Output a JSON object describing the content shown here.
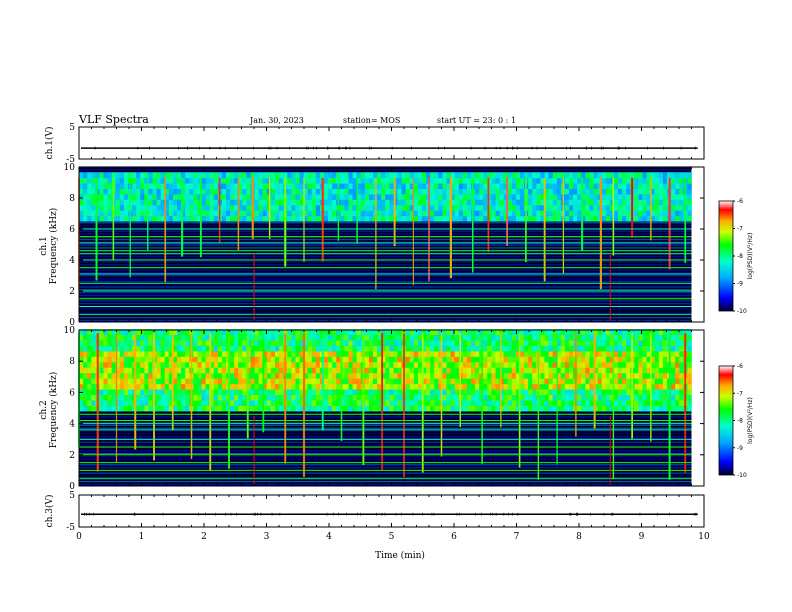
{
  "header": {
    "title": "VLF Spectra",
    "date": "Jan. 30, 2023",
    "station": "station= MOS",
    "start": "start  UT =   23: 0  : 1"
  },
  "chart_data": [
    {
      "type": "line",
      "name": "ch1-waveform",
      "ylabel": "ch.1(V)",
      "ylim": [
        -5,
        5
      ],
      "y_ticks": [
        "5",
        "-5"
      ],
      "xlim": [
        0,
        10
      ],
      "baseline_value": -1.6
    },
    {
      "type": "heatmap",
      "name": "ch1-spectrogram",
      "ylabel": "ch.1\nFrequency (kHz)",
      "ylabel_top": "ch.1",
      "ylabel_bottom": "Frequency (kHz)",
      "ylim": [
        0,
        10
      ],
      "y_ticks": [
        "0",
        "2",
        "4",
        "6",
        "8",
        "10"
      ],
      "xlim": [
        0,
        10
      ],
      "data_end_min": 9.8,
      "colorbar": {
        "label": "log(PSD)(V²/Hz)",
        "range": [
          -10,
          -6
        ],
        "ticks": [
          "-6",
          "-7",
          "-8",
          "-9",
          "-10"
        ]
      },
      "intense_band_kHz": [
        6.5,
        9.3
      ],
      "burst_times_min": [
        0.0,
        0.28,
        0.55,
        0.82,
        1.1,
        1.38,
        1.65,
        1.95,
        2.25,
        2.55,
        2.78,
        3.05,
        3.3,
        3.6,
        3.9,
        4.15,
        4.45,
        4.75,
        5.05,
        5.35,
        5.6,
        5.95,
        6.3,
        6.55,
        6.85,
        7.15,
        7.45,
        7.75,
        8.05,
        8.35,
        8.55,
        8.85,
        9.15,
        9.45,
        9.7
      ],
      "persistent_lines_kHz": [
        0.5,
        1.0,
        1.5,
        2.0,
        2.5,
        3.1,
        3.5,
        4.0,
        4.4,
        4.6,
        5.1,
        5.5,
        6.0
      ]
    },
    {
      "type": "heatmap",
      "name": "ch2-spectrogram",
      "ylabel": "ch.2\nFrequency (kHz)",
      "ylabel_top": "ch.2",
      "ylabel_bottom": "Frequency (kHz)",
      "ylim": [
        0,
        10
      ],
      "y_ticks": [
        "0",
        "2",
        "4",
        "6",
        "8",
        "10"
      ],
      "xlim": [
        0,
        10
      ],
      "data_end_min": 9.8,
      "colorbar": {
        "label": "log(PSD)(V²/Hz)",
        "range": [
          -10,
          -6
        ],
        "ticks": [
          "-6",
          "-7",
          "-8",
          "-9",
          "-10"
        ]
      },
      "intense_band_kHz": [
        4.8,
        9.8
      ],
      "peak_band_kHz": [
        6.0,
        8.5
      ],
      "burst_times_min": [
        0.0,
        0.3,
        0.6,
        0.9,
        1.2,
        1.5,
        1.8,
        2.1,
        2.4,
        2.7,
        2.95,
        3.3,
        3.6,
        3.9,
        4.2,
        4.55,
        4.85,
        5.2,
        5.5,
        5.8,
        6.1,
        6.45,
        6.75,
        7.05,
        7.35,
        7.65,
        7.95,
        8.25,
        8.55,
        8.85,
        9.15,
        9.45,
        9.7
      ],
      "persistent_lines_kHz": [
        0.5,
        1.0,
        1.5,
        2.0,
        2.5,
        3.0,
        3.6,
        4.0,
        4.2,
        4.6
      ]
    },
    {
      "type": "line",
      "name": "ch3-waveform",
      "ylabel": "ch.3(V)",
      "ylim": [
        -5,
        5
      ],
      "y_ticks": [
        "5",
        "-5"
      ],
      "xlim": [
        0,
        10
      ],
      "baseline_value": -1.0
    }
  ],
  "x_axis": {
    "label": "Time (min)",
    "ticks": [
      "0",
      "1",
      "2",
      "3",
      "4",
      "5",
      "6",
      "7",
      "8",
      "9",
      "10"
    ]
  }
}
